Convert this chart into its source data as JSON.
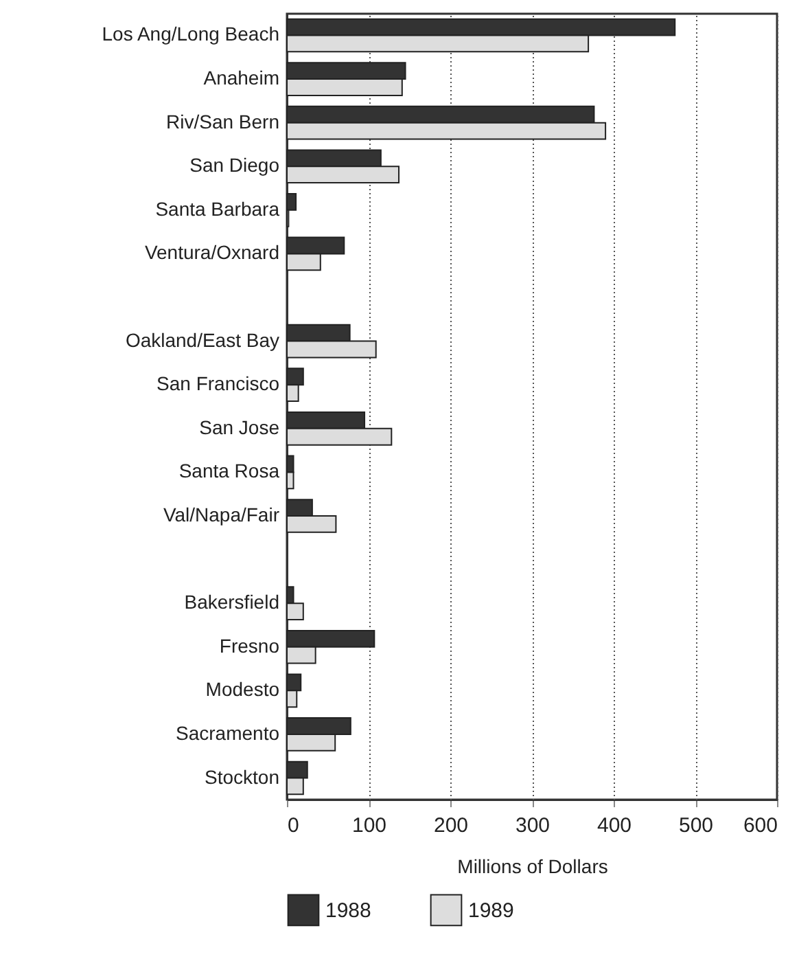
{
  "chart_data": {
    "type": "bar",
    "orientation": "horizontal",
    "xlabel": "Millions of Dollars",
    "categories": [
      "Los Ang/Long Beach",
      "Anaheim",
      "Riv/San Bern",
      "San Diego",
      "Santa Barbara",
      "Ventura/Oxnard",
      null,
      "Oakland/East Bay",
      "San Francisco",
      "San Jose",
      "Santa Rosa",
      "Val/Napa/Fair",
      null,
      "Bakersfield",
      "Fresno",
      "Modesto",
      "Sacramento",
      "Stockton"
    ],
    "series": [
      {
        "name": "1988",
        "color": "#333333",
        "values": [
          475,
          145,
          376,
          115,
          11,
          70,
          null,
          77,
          20,
          95,
          8,
          31,
          null,
          8,
          107,
          17,
          78,
          25
        ]
      },
      {
        "name": "1989",
        "color": "#dddddd",
        "values": [
          369,
          141,
          390,
          137,
          2,
          41,
          null,
          109,
          14,
          128,
          8,
          60,
          null,
          20,
          35,
          12,
          59,
          20
        ]
      }
    ],
    "xlim": [
      0,
      600
    ],
    "xticks": [
      0,
      100,
      200,
      300,
      400,
      500,
      600
    ],
    "grid": "x",
    "legend": "bottom"
  }
}
